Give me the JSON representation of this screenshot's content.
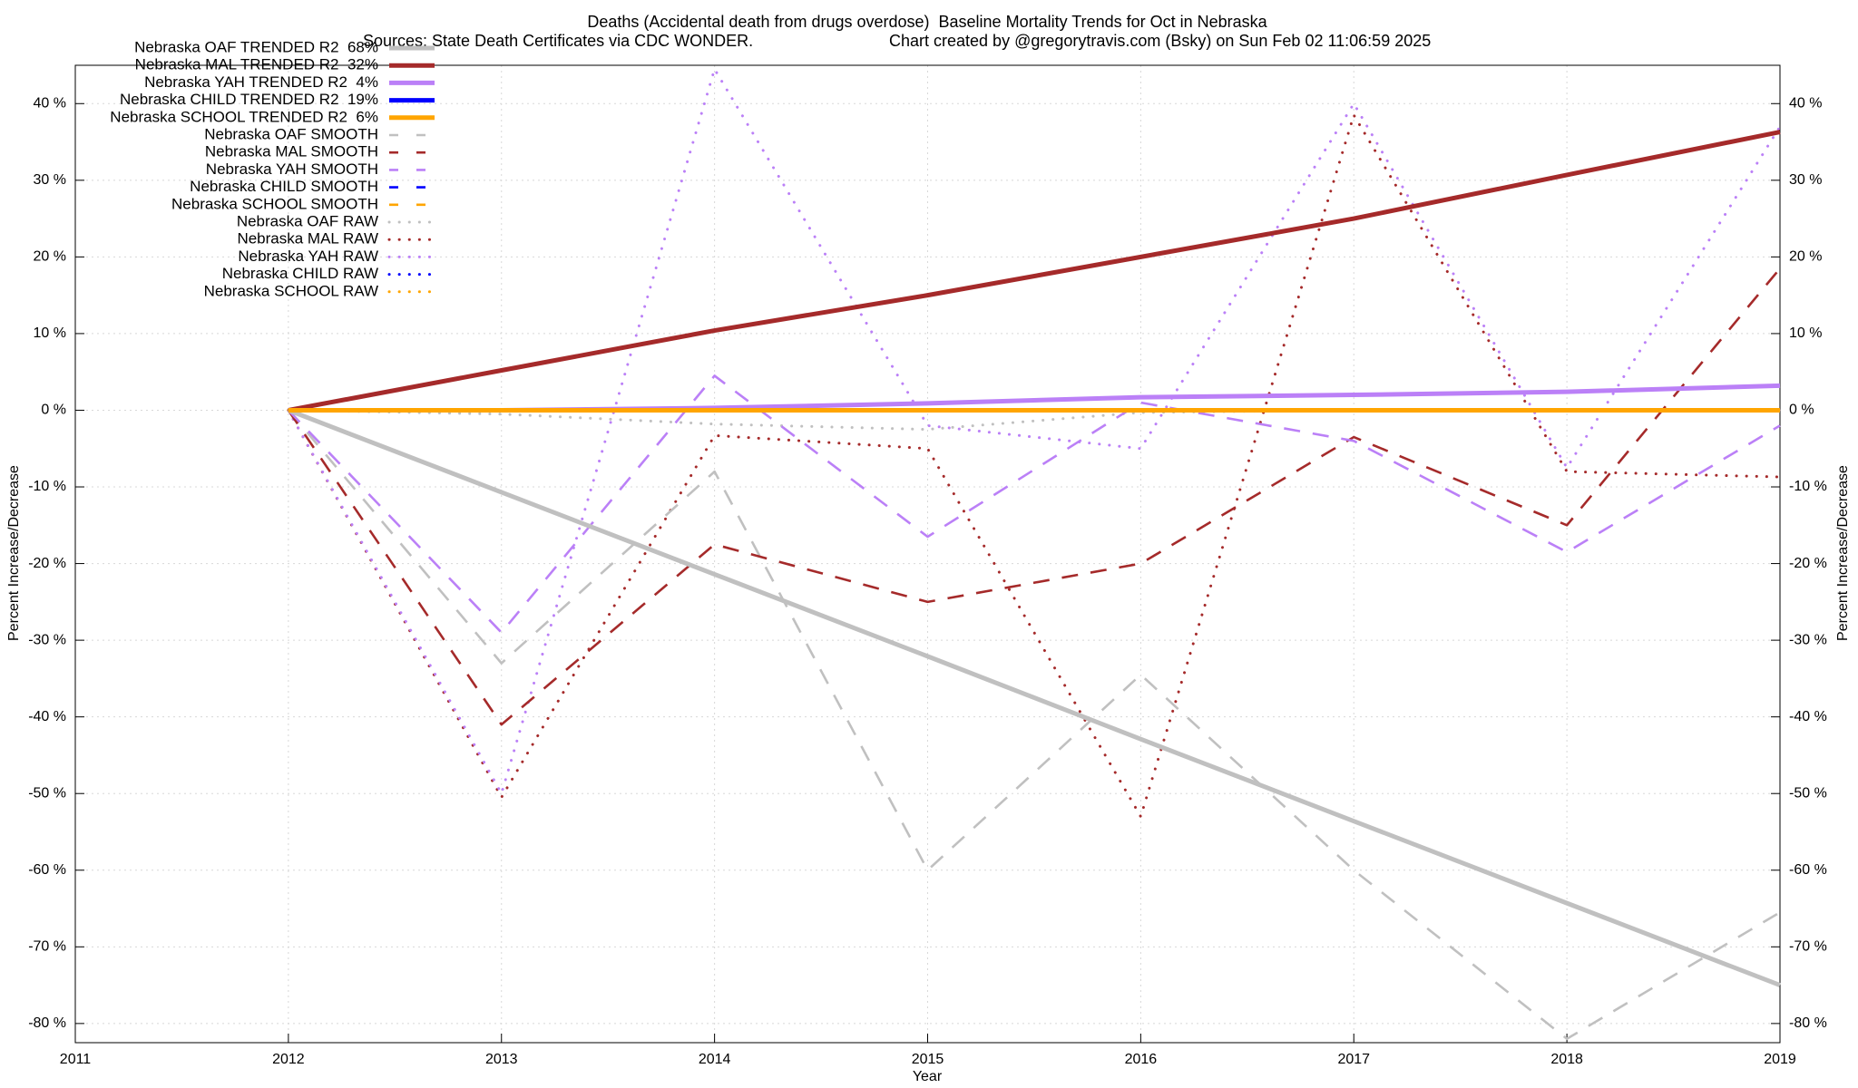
{
  "chart_data": {
    "type": "line",
    "title": "Deaths (Accidental death from drugs overdose)  Baseline Mortality Trends for Oct in Nebraska",
    "subtitle": [
      "Sources: State Death Certificates via CDC WONDER.",
      "Chart created by @gregorytravis.com (Bsky) on Sun Feb 02 11:06:59 2025"
    ],
    "x_label": "Year",
    "y_label": "Percent Increase/Decrease",
    "y2_label": "Percent Increase/Decrease",
    "x": [
      2012,
      2013,
      2014,
      2015,
      2016,
      2017,
      2018,
      2019
    ],
    "xlim": [
      2011,
      2019
    ],
    "xticks": [
      2011,
      2012,
      2013,
      2014,
      2015,
      2016,
      2017,
      2018,
      2019
    ],
    "ylim": [
      -82.5,
      45
    ],
    "yticks": [
      {
        "value": -80,
        "label": "-80 %"
      },
      {
        "value": -70,
        "label": "-70 %"
      },
      {
        "value": -60,
        "label": "-60 %"
      },
      {
        "value": -50,
        "label": "-50 %"
      },
      {
        "value": -40,
        "label": "-40 %"
      },
      {
        "value": -30,
        "label": "-30 %"
      },
      {
        "value": -20,
        "label": "-20 %"
      },
      {
        "value": -10,
        "label": "-10 %"
      },
      {
        "value": 0,
        "label": "0 %"
      },
      {
        "value": 10,
        "label": "10 %"
      },
      {
        "value": 20,
        "label": "20 %"
      },
      {
        "value": 30,
        "label": "30 %"
      },
      {
        "value": 40,
        "label": "40 %"
      }
    ],
    "grid": true,
    "legend": "top-left",
    "series": [
      {
        "name": "Nebraska OAF TRENDED R2  68%",
        "color": "#c0c0c0",
        "style": "solid",
        "values": [
          0,
          -10.7,
          -21.4,
          -32.1,
          -42.9,
          -53.6,
          -64.3,
          -75
        ]
      },
      {
        "name": "Nebraska MAL TRENDED R2  32%",
        "color": "#a52a2a",
        "style": "solid",
        "values": [
          0,
          5.2,
          10.4,
          15,
          20,
          25,
          30.7,
          36.3
        ]
      },
      {
        "name": "Nebraska YAH TRENDED R2  4%",
        "color": "#bb80f7",
        "style": "solid",
        "values": [
          0,
          0,
          0.3,
          0.9,
          1.7,
          2,
          2.4,
          3.2
        ]
      },
      {
        "name": "Nebraska CHILD TRENDED R2  19%",
        "color": "#0000ff",
        "style": "solid",
        "values": [
          0,
          0,
          0,
          0,
          0,
          0,
          0,
          0
        ]
      },
      {
        "name": "Nebraska SCHOOL TRENDED R2  6%",
        "color": "#ffa500",
        "style": "solid",
        "values": [
          0,
          0,
          0,
          0,
          0,
          0,
          0,
          0
        ]
      },
      {
        "name": "Nebraska OAF SMOOTH",
        "color": "#c0c0c0",
        "style": "dashed",
        "values": [
          0,
          -33,
          -8,
          -60,
          -34.5,
          -60,
          -82,
          -65.5
        ]
      },
      {
        "name": "Nebraska MAL SMOOTH",
        "color": "#a52a2a",
        "style": "dashed",
        "values": [
          0,
          -41,
          -17.5,
          -25,
          -20,
          -3.5,
          -15,
          18.5
        ]
      },
      {
        "name": "Nebraska YAH SMOOTH",
        "color": "#bb80f7",
        "style": "dashed",
        "values": [
          0,
          -29,
          4.5,
          -16.5,
          1,
          -4,
          -18.5,
          -2
        ]
      },
      {
        "name": "Nebraska CHILD SMOOTH",
        "color": "#0000ff",
        "style": "dashed",
        "values": [
          0,
          0,
          0,
          0,
          0,
          0,
          0,
          0
        ]
      },
      {
        "name": "Nebraska SCHOOL SMOOTH",
        "color": "#ffa500",
        "style": "dashed",
        "values": [
          0,
          0,
          0,
          0,
          0,
          0,
          0,
          0
        ]
      },
      {
        "name": "Nebraska OAF RAW",
        "color": "#c0c0c0",
        "style": "dotted",
        "values": [
          0,
          -0.5,
          -1.8,
          -2.5,
          -0.3,
          0,
          0,
          0
        ]
      },
      {
        "name": "Nebraska MAL RAW",
        "color": "#a52a2a",
        "style": "dotted",
        "values": [
          0,
          -50.5,
          -3.3,
          -5,
          -53,
          38.5,
          -8,
          -8.7
        ]
      },
      {
        "name": "Nebraska YAH RAW",
        "color": "#bb80f7",
        "style": "dotted",
        "values": [
          0,
          -50,
          44.5,
          -2,
          -5,
          40,
          -7.5,
          37
        ]
      },
      {
        "name": "Nebraska CHILD RAW",
        "color": "#0000ff",
        "style": "dotted",
        "values": [
          0,
          0,
          0,
          0,
          0,
          0,
          0,
          0
        ]
      },
      {
        "name": "Nebraska SCHOOL RAW",
        "color": "#ffa500",
        "style": "dotted",
        "values": [
          0,
          0,
          0,
          0,
          0,
          0,
          0,
          0
        ]
      }
    ]
  }
}
